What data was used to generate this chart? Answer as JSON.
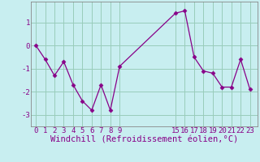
{
  "x": [
    0,
    1,
    2,
    3,
    4,
    5,
    6,
    7,
    8,
    9,
    15,
    16,
    17,
    18,
    19,
    20,
    21,
    22,
    23
  ],
  "y": [
    0.0,
    -0.6,
    -1.3,
    -0.7,
    -1.7,
    -2.4,
    -2.8,
    -1.7,
    -2.8,
    -0.9,
    1.4,
    1.5,
    -0.5,
    -1.1,
    -1.2,
    -1.8,
    -1.8,
    -0.6,
    -1.9
  ],
  "line_color": "#880088",
  "marker": "D",
  "marker_size": 2.5,
  "bg_color": "#c8eef0",
  "grid_color": "#99ccbb",
  "xlabel": "Windchill (Refroidissement éolien,°C)",
  "xlabel_color": "#880088",
  "yticks": [
    -3,
    -2,
    -1,
    0,
    1
  ],
  "xticks": [
    0,
    1,
    2,
    3,
    4,
    5,
    6,
    7,
    8,
    9,
    15,
    16,
    17,
    18,
    19,
    20,
    21,
    22,
    23
  ],
  "ylim": [
    -3.5,
    1.9
  ],
  "xlim": [
    -0.5,
    23.8
  ],
  "tick_color": "#880088",
  "tick_fontsize": 6.5,
  "xlabel_fontsize": 7.5,
  "spine_color": "#888888"
}
